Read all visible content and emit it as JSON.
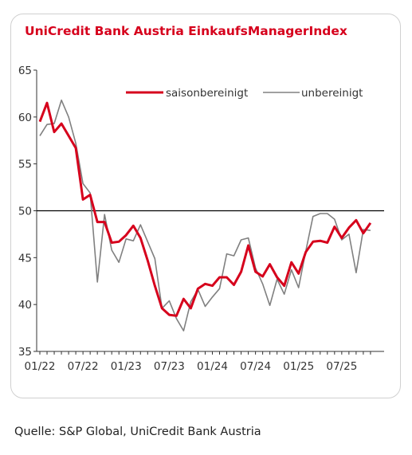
{
  "chart_data": {
    "type": "line",
    "title": "UniCredit Bank Austria EinkaufsManagerIndex",
    "xlabel": "",
    "ylabel": "",
    "ylim": [
      35,
      65
    ],
    "yticks": [
      35,
      40,
      45,
      50,
      55,
      60,
      65
    ],
    "xticks": [
      "01/22",
      "07/22",
      "01/23",
      "07/23",
      "01/24",
      "07/24",
      "01/25",
      "07/25"
    ],
    "reference_line": 50,
    "legend_position": "top-right",
    "grid": false,
    "start_month": "01/22",
    "series": [
      {
        "name": "saisonbereinigt",
        "color": "#d6001c",
        "values": [
          59.5,
          61.5,
          58.4,
          59.3,
          58.0,
          56.7,
          51.2,
          51.7,
          48.8,
          48.8,
          46.6,
          46.7,
          47.4,
          48.4,
          47.1,
          44.7,
          42.0,
          39.6,
          38.9,
          38.8,
          40.6,
          39.6,
          41.7,
          42.2,
          42.0,
          42.9,
          42.9,
          42.1,
          43.5,
          46.3,
          43.5,
          43.0,
          44.3,
          42.9,
          42.0,
          44.5,
          43.3,
          45.6,
          46.7,
          46.8,
          46.6,
          48.3,
          47.1,
          48.2,
          49.0,
          47.6,
          48.7
        ]
      },
      {
        "name": "unbereinigt",
        "color": "#808080",
        "values": [
          58.0,
          59.2,
          59.3,
          61.8,
          60.0,
          57.2,
          52.9,
          51.9,
          42.4,
          49.6,
          45.8,
          44.5,
          47.0,
          46.8,
          48.5,
          46.7,
          44.9,
          39.6,
          40.4,
          38.5,
          37.2,
          40.3,
          41.6,
          39.8,
          40.8,
          41.7,
          45.4,
          45.2,
          46.9,
          47.1,
          43.9,
          42.2,
          39.9,
          42.7,
          41.1,
          43.7,
          41.8,
          45.7,
          49.4,
          49.7,
          49.7,
          49.1,
          46.9,
          47.5,
          43.4,
          48.0,
          47.9
        ]
      }
    ]
  },
  "source": "Quelle: S&P Global, UniCredit Bank Austria"
}
